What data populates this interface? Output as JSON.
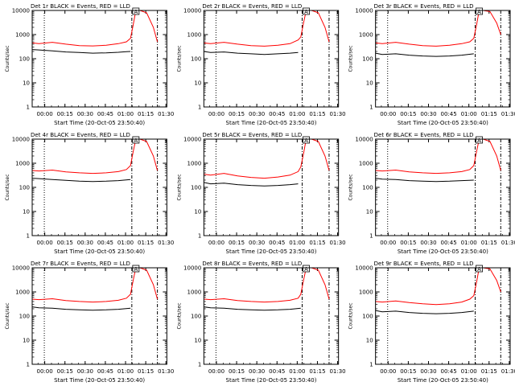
{
  "colors": {
    "background": "#ffffff",
    "events": "#000000",
    "lld": "#ff0000",
    "axes": "#000000"
  },
  "chart_data": [
    {
      "type": "line",
      "title": "Det 1r BLACK = Events, RED = LLD",
      "xlabel": "Start Time (20-Oct-05 23:50:40)",
      "ylabel": "Counts/sec",
      "x_ticks": [
        "00:00",
        "00:15",
        "00:30",
        "00:45",
        "01:00",
        "01:15",
        "01:30"
      ],
      "y_ticks": [
        "1",
        "10",
        "100",
        "1000",
        "10000"
      ],
      "x_unit": "minutes after 23:50:40",
      "xlim": [
        0,
        100
      ],
      "ylim": [
        1,
        10000
      ],
      "y_scale": "log",
      "vlines_dotted": [
        9
      ],
      "vlines_dashdot": [
        74,
        93
      ],
      "marker_label": "A",
      "marker_x": 77,
      "series": [
        {
          "name": "Events",
          "color": "#000000",
          "x": [
            0,
            5,
            15,
            25,
            35,
            45,
            55,
            64,
            70,
            73
          ],
          "values": [
            240,
            230,
            210,
            190,
            180,
            170,
            175,
            185,
            195,
            200
          ]
        },
        {
          "name": "LLD",
          "color": "#ff0000",
          "x": [
            0,
            5,
            15,
            25,
            35,
            45,
            55,
            64,
            70,
            73,
            75,
            77,
            80,
            85,
            90,
            93
          ],
          "values": [
            450,
            420,
            480,
            400,
            350,
            340,
            360,
            420,
            500,
            700,
            2500,
            10000,
            10000,
            8000,
            2000,
            500
          ]
        }
      ]
    },
    {
      "type": "line",
      "title": "Det 2r BLACK = Events, RED = LLD",
      "xlabel": "Start Time (20-Oct-05 23:50:40)",
      "ylabel": "Counts/sec",
      "x_ticks": [
        "00:00",
        "00:15",
        "00:30",
        "00:45",
        "01:00",
        "01:15",
        "01:30"
      ],
      "y_ticks": [
        "1",
        "10",
        "100",
        "1000",
        "10000"
      ],
      "x_unit": "minutes after 23:50:40",
      "xlim": [
        0,
        100
      ],
      "ylim": [
        1,
        10000
      ],
      "y_scale": "log",
      "vlines_dotted": [
        9
      ],
      "vlines_dashdot": [
        73,
        93
      ],
      "marker_label": "A",
      "marker_x": 76,
      "series": [
        {
          "name": "Events",
          "color": "#000000",
          "x": [
            0,
            5,
            15,
            25,
            35,
            45,
            55,
            64,
            70
          ],
          "values": [
            200,
            180,
            190,
            170,
            160,
            150,
            160,
            170,
            180
          ]
        },
        {
          "name": "LLD",
          "color": "#ff0000",
          "x": [
            0,
            5,
            15,
            25,
            35,
            45,
            55,
            64,
            70,
            72,
            74,
            76,
            80,
            85,
            90,
            93
          ],
          "values": [
            450,
            420,
            480,
            400,
            350,
            330,
            360,
            420,
            600,
            800,
            3000,
            10000,
            10000,
            8000,
            2000,
            500
          ]
        }
      ]
    },
    {
      "type": "line",
      "title": "Det 3r BLACK = Events, RED = LLD",
      "xlabel": "Start Time (20-Oct-05 23:50:40)",
      "ylabel": "Counts/sec",
      "x_ticks": [
        "00:00",
        "00:15",
        "00:30",
        "00:45",
        "01:00",
        "01:15",
        "01:30"
      ],
      "y_ticks": [
        "1",
        "10",
        "100",
        "1000",
        "10000"
      ],
      "x_unit": "minutes after 23:50:40",
      "xlim": [
        0,
        100
      ],
      "ylim": [
        1,
        10000
      ],
      "y_scale": "log",
      "vlines_dotted": [
        9
      ],
      "vlines_dashdot": [
        74,
        93
      ],
      "marker_label": "A",
      "marker_x": 77,
      "series": [
        {
          "name": "Events",
          "color": "#000000",
          "x": [
            0,
            5,
            15,
            25,
            35,
            45,
            55,
            64,
            73
          ],
          "values": [
            170,
            150,
            160,
            140,
            130,
            125,
            130,
            140,
            160
          ]
        },
        {
          "name": "LLD",
          "color": "#ff0000",
          "x": [
            0,
            5,
            15,
            25,
            35,
            45,
            55,
            64,
            70,
            73,
            75,
            77,
            80,
            85,
            90,
            93
          ],
          "values": [
            450,
            420,
            480,
            400,
            350,
            330,
            360,
            420,
            500,
            700,
            2500,
            10000,
            10000,
            9000,
            3000,
            1000
          ]
        }
      ]
    },
    {
      "type": "line",
      "title": "Det 4r BLACK = Events, RED = LLD",
      "xlabel": "Start Time (20-Oct-05 23:50:40)",
      "ylabel": "Counts/sec",
      "x_ticks": [
        "00:00",
        "00:15",
        "00:30",
        "00:45",
        "01:00",
        "01:15",
        "01:30"
      ],
      "y_ticks": [
        "1",
        "10",
        "100",
        "1000",
        "10000"
      ],
      "x_unit": "minutes after 23:50:40",
      "xlim": [
        0,
        100
      ],
      "ylim": [
        1,
        10000
      ],
      "y_scale": "log",
      "vlines_dotted": [
        9
      ],
      "vlines_dashdot": [
        74,
        93
      ],
      "marker_label": "A",
      "marker_x": 77,
      "series": [
        {
          "name": "Events",
          "color": "#000000",
          "x": [
            0,
            5,
            15,
            25,
            35,
            45,
            55,
            64,
            73
          ],
          "values": [
            240,
            230,
            210,
            195,
            180,
            175,
            180,
            190,
            210
          ]
        },
        {
          "name": "LLD",
          "color": "#ff0000",
          "x": [
            0,
            5,
            15,
            25,
            35,
            45,
            55,
            64,
            70,
            73,
            75,
            77,
            80,
            85,
            90,
            93
          ],
          "values": [
            500,
            480,
            520,
            440,
            400,
            380,
            400,
            450,
            550,
            800,
            3000,
            10000,
            10000,
            8000,
            2000,
            500
          ]
        }
      ]
    },
    {
      "type": "line",
      "title": "Det 5r BLACK = Events, RED = LLD",
      "xlabel": "Start Time (20-Oct-05 23:50:40)",
      "ylabel": "Counts/sec",
      "x_ticks": [
        "00:00",
        "00:15",
        "00:30",
        "00:45",
        "01:00",
        "01:15",
        "01:30"
      ],
      "y_ticks": [
        "1",
        "10",
        "100",
        "1000",
        "10000"
      ],
      "x_unit": "minutes after 23:50:40",
      "xlim": [
        0,
        100
      ],
      "ylim": [
        1,
        10000
      ],
      "y_scale": "log",
      "vlines_dotted": [
        9
      ],
      "vlines_dashdot": [
        73,
        93
      ],
      "marker_label": "A",
      "marker_x": 76,
      "series": [
        {
          "name": "Events",
          "color": "#000000",
          "x": [
            0,
            5,
            15,
            25,
            35,
            45,
            55,
            64,
            70
          ],
          "values": [
            160,
            140,
            150,
            130,
            120,
            115,
            120,
            130,
            140
          ]
        },
        {
          "name": "LLD",
          "color": "#ff0000",
          "x": [
            0,
            5,
            15,
            25,
            35,
            45,
            55,
            64,
            70,
            72,
            74,
            76,
            80,
            85,
            90,
            93
          ],
          "values": [
            350,
            320,
            380,
            300,
            260,
            240,
            270,
            320,
            450,
            700,
            2500,
            10000,
            10000,
            8000,
            2000,
            500
          ]
        }
      ]
    },
    {
      "type": "line",
      "title": "Det 6r BLACK = Events, RED = LLD",
      "xlabel": "Start Time (20-Oct-05 23:50:40)",
      "ylabel": "Counts/sec",
      "x_ticks": [
        "00:00",
        "00:15",
        "00:30",
        "00:45",
        "01:00",
        "01:15",
        "01:30"
      ],
      "y_ticks": [
        "1",
        "10",
        "100",
        "1000",
        "10000"
      ],
      "x_unit": "minutes after 23:50:40",
      "xlim": [
        0,
        100
      ],
      "ylim": [
        1,
        10000
      ],
      "y_scale": "log",
      "vlines_dotted": [
        9
      ],
      "vlines_dashdot": [
        74,
        93
      ],
      "marker_label": "A",
      "marker_x": 77,
      "series": [
        {
          "name": "Events",
          "color": "#000000",
          "x": [
            0,
            5,
            15,
            25,
            35,
            45,
            55,
            64,
            73
          ],
          "values": [
            240,
            220,
            210,
            190,
            180,
            175,
            180,
            190,
            200
          ]
        },
        {
          "name": "LLD",
          "color": "#ff0000",
          "x": [
            0,
            5,
            15,
            25,
            35,
            45,
            55,
            64,
            70,
            73,
            75,
            77,
            80,
            85,
            90,
            93
          ],
          "values": [
            500,
            480,
            520,
            440,
            400,
            380,
            400,
            450,
            550,
            800,
            3000,
            10000,
            10000,
            8000,
            2000,
            500
          ]
        }
      ]
    },
    {
      "type": "line",
      "title": "Det 7r BLACK = Events, RED = LLD",
      "xlabel": "Start Time (20-Oct-05 23:50:40)",
      "ylabel": "Counts/sec",
      "x_ticks": [
        "00:00",
        "00:15",
        "00:30",
        "00:45",
        "01:00",
        "01:15",
        "01:30"
      ],
      "y_ticks": [
        "1",
        "10",
        "100",
        "1000",
        "10000"
      ],
      "x_unit": "minutes after 23:50:40",
      "xlim": [
        0,
        100
      ],
      "ylim": [
        1,
        10000
      ],
      "y_scale": "log",
      "vlines_dotted": [
        9
      ],
      "vlines_dashdot": [
        74,
        93
      ],
      "marker_label": "A",
      "marker_x": 77,
      "series": [
        {
          "name": "Events",
          "color": "#000000",
          "x": [
            0,
            5,
            15,
            25,
            35,
            45,
            55,
            64,
            73
          ],
          "values": [
            240,
            220,
            210,
            190,
            180,
            175,
            180,
            190,
            210
          ]
        },
        {
          "name": "LLD",
          "color": "#ff0000",
          "x": [
            0,
            5,
            15,
            25,
            35,
            45,
            55,
            64,
            70,
            73,
            75,
            77,
            80,
            85,
            90,
            93
          ],
          "values": [
            500,
            480,
            520,
            440,
            400,
            380,
            400,
            450,
            550,
            800,
            3000,
            10000,
            10000,
            8000,
            2000,
            500
          ]
        }
      ]
    },
    {
      "type": "line",
      "title": "Det 8r BLACK = Events, RED = LLD",
      "xlabel": "Start Time (20-Oct-05 23:50:40)",
      "ylabel": "Counts/sec",
      "x_ticks": [
        "00:00",
        "00:15",
        "00:30",
        "00:45",
        "01:00",
        "01:15",
        "01:30"
      ],
      "y_ticks": [
        "1",
        "10",
        "100",
        "1000",
        "10000"
      ],
      "x_unit": "minutes after 23:50:40",
      "xlim": [
        0,
        100
      ],
      "ylim": [
        1,
        10000
      ],
      "y_scale": "log",
      "vlines_dotted": [
        9
      ],
      "vlines_dashdot": [
        73,
        93
      ],
      "marker_label": "A",
      "marker_x": 76,
      "series": [
        {
          "name": "Events",
          "color": "#000000",
          "x": [
            0,
            5,
            15,
            25,
            35,
            45,
            55,
            64,
            72
          ],
          "values": [
            240,
            220,
            210,
            190,
            180,
            175,
            180,
            190,
            210
          ]
        },
        {
          "name": "LLD",
          "color": "#ff0000",
          "x": [
            0,
            5,
            15,
            25,
            35,
            45,
            55,
            64,
            70,
            72,
            74,
            76,
            80,
            85,
            90,
            93
          ],
          "values": [
            500,
            480,
            520,
            440,
            400,
            380,
            400,
            450,
            550,
            800,
            3000,
            10000,
            10000,
            8000,
            2000,
            500
          ]
        }
      ]
    },
    {
      "type": "line",
      "title": "Det 9r BLACK = Events, RED = LLD",
      "xlabel": "Start Time (20-Oct-05 23:50:40)",
      "ylabel": "Counts/sec",
      "x_ticks": [
        "00:00",
        "00:15",
        "00:30",
        "00:45",
        "01:00",
        "01:15",
        "01:30"
      ],
      "y_ticks": [
        "1",
        "10",
        "100",
        "1000",
        "10000"
      ],
      "x_unit": "minutes after 23:50:40",
      "xlim": [
        0,
        100
      ],
      "ylim": [
        1,
        10000
      ],
      "y_scale": "log",
      "vlines_dotted": [
        9
      ],
      "vlines_dashdot": [
        74,
        93
      ],
      "marker_label": "A",
      "marker_x": 77,
      "series": [
        {
          "name": "Events",
          "color": "#000000",
          "x": [
            0,
            5,
            15,
            25,
            35,
            45,
            55,
            64,
            73
          ],
          "values": [
            170,
            150,
            160,
            140,
            130,
            125,
            130,
            140,
            160
          ]
        },
        {
          "name": "LLD",
          "color": "#ff0000",
          "x": [
            0,
            5,
            15,
            25,
            35,
            45,
            55,
            64,
            70,
            73,
            75,
            77,
            80,
            85,
            90,
            93
          ],
          "values": [
            400,
            380,
            420,
            360,
            320,
            300,
            320,
            380,
            500,
            700,
            2500,
            10000,
            10000,
            9000,
            3000,
            1000
          ]
        }
      ]
    }
  ]
}
